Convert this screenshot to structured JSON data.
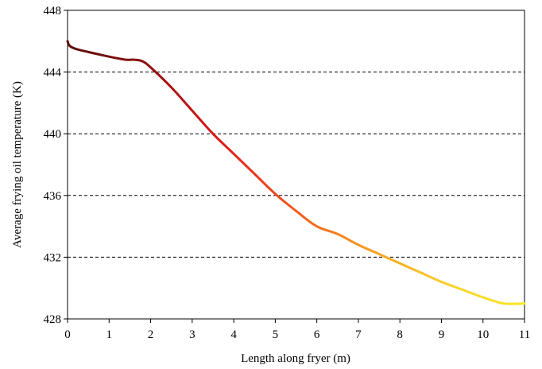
{
  "chart_data": {
    "type": "line",
    "title": "",
    "xlabel": "Length along fryer (m)",
    "ylabel": "Average frying oil temperature (K)",
    "xlim": [
      0,
      11
    ],
    "ylim": [
      428,
      448
    ],
    "xticks": [
      0,
      1,
      2,
      3,
      4,
      5,
      6,
      7,
      8,
      9,
      10,
      11
    ],
    "yticks": [
      428,
      432,
      436,
      440,
      444,
      448
    ],
    "grid": "horizontal-dashed",
    "legend": "none",
    "line_gradient": [
      "#5c0e0c",
      "#8b1010",
      "#e01818",
      "#f25a1e",
      "#f5a01f",
      "#f7d12a",
      "#f8ea24"
    ],
    "series": [
      {
        "x": [
          0,
          0.05,
          0.2,
          0.5,
          1.0,
          1.4,
          1.6,
          1.8,
          2.0,
          2.5,
          3.0,
          3.5,
          4.0,
          4.5,
          5.0,
          5.5,
          6.0,
          6.5,
          7.0,
          7.5,
          8.0,
          8.5,
          9.0,
          9.5,
          10.0,
          10.5,
          11.0
        ],
        "y": [
          446.0,
          445.7,
          445.5,
          445.3,
          445.0,
          444.8,
          444.8,
          444.7,
          444.3,
          443.0,
          441.5,
          440.0,
          438.7,
          437.4,
          436.1,
          435.0,
          434.0,
          433.5,
          432.8,
          432.2,
          431.6,
          431.0,
          430.4,
          429.9,
          429.4,
          429.0,
          429.0
        ]
      }
    ]
  }
}
